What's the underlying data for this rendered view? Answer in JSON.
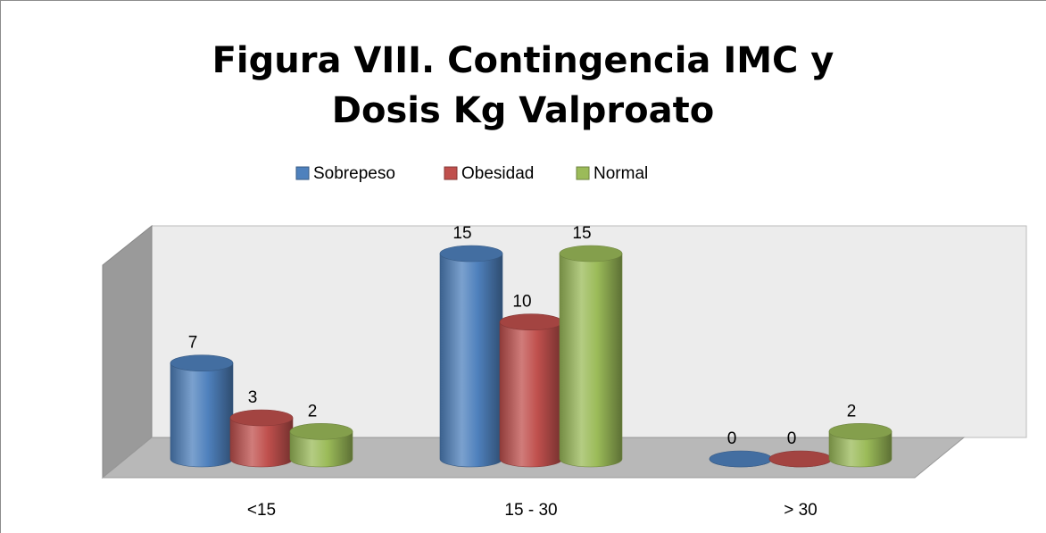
{
  "chart_data": {
    "type": "bar3d",
    "title": "Figura VIII. Contingencia IMC y Dosis Kg Valproato",
    "categories": [
      "<15",
      "15 - 30",
      "> 30"
    ],
    "series": [
      {
        "name": "Sobrepeso",
        "color": "#4f81bd",
        "values": [
          7,
          15,
          0
        ]
      },
      {
        "name": "Obesidad",
        "color": "#c0504d",
        "values": [
          3,
          10,
          0
        ]
      },
      {
        "name": "Normal",
        "color": "#9bbb59",
        "values": [
          2,
          15,
          2
        ]
      }
    ],
    "legend": "top"
  }
}
